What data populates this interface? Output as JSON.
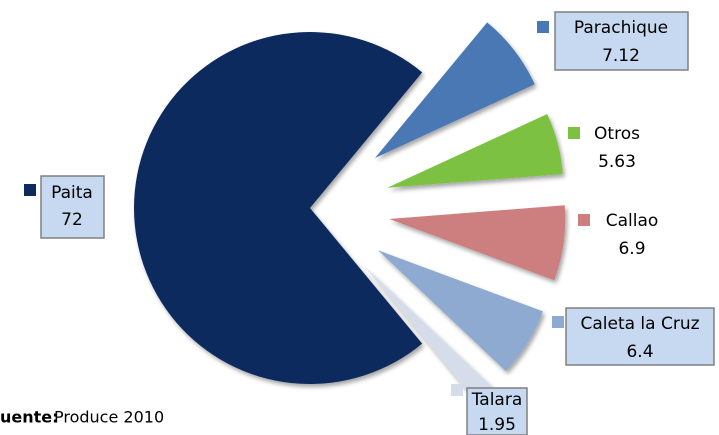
{
  "chart_data": {
    "type": "pie",
    "categories": [
      "Paita",
      "Parachique",
      "Otros",
      "Callao",
      "Caleta la Cruz",
      "Talara"
    ],
    "values": [
      72,
      7.12,
      5.63,
      6.9,
      6.4,
      1.95
    ],
    "colors": [
      "#0f2a5f",
      "#4a78b5",
      "#7cc142",
      "#cc7f7e",
      "#8eaad1",
      "#d4dde9"
    ],
    "footnote": {
      "label": "uente:",
      "text": "Produce 2010"
    }
  }
}
